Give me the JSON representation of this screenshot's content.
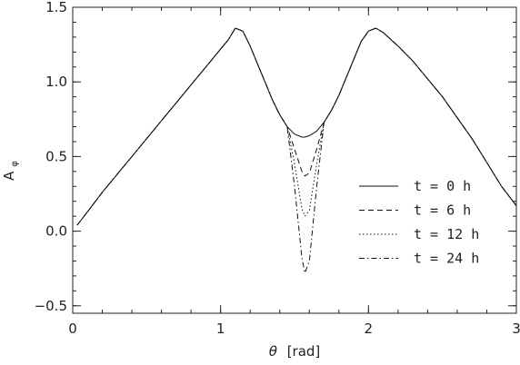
{
  "chart_data": {
    "type": "line",
    "xlabel": {
      "symbol": "θ",
      "unit": "[rad]"
    },
    "ylabel": {
      "main": "A",
      "sub": "φ"
    },
    "xlim": [
      0,
      3
    ],
    "ylim": [
      -0.55,
      1.5
    ],
    "xticks": [
      "0",
      "1",
      "2",
      "3"
    ],
    "yticks": [
      "−0.5",
      "0.0",
      "0.5",
      "1.0",
      "1.5"
    ],
    "ytick_values": [
      -0.5,
      0.0,
      0.5,
      1.0,
      1.5
    ],
    "grid": false,
    "legend_position": "right-center",
    "x": [
      0.03,
      0.1,
      0.2,
      0.3,
      0.4,
      0.5,
      0.6,
      0.7,
      0.8,
      0.9,
      1.0,
      1.05,
      1.1,
      1.15,
      1.2,
      1.25,
      1.3,
      1.35,
      1.4,
      1.45,
      1.5,
      1.55,
      1.57,
      1.6,
      1.65,
      1.7,
      1.75,
      1.8,
      1.85,
      1.9,
      1.95,
      2.0,
      2.05,
      2.1,
      2.2,
      2.3,
      2.4,
      2.5,
      2.6,
      2.7,
      2.8,
      2.9,
      3.0
    ],
    "series": [
      {
        "name": "t = 0 h",
        "dash": "",
        "values": [
          0.04,
          0.13,
          0.26,
          0.38,
          0.5,
          0.62,
          0.74,
          0.86,
          0.98,
          1.1,
          1.22,
          1.28,
          1.36,
          1.34,
          1.24,
          1.12,
          1.0,
          0.88,
          0.78,
          0.7,
          0.65,
          0.63,
          0.63,
          0.64,
          0.67,
          0.73,
          0.81,
          0.91,
          1.03,
          1.15,
          1.27,
          1.34,
          1.36,
          1.33,
          1.24,
          1.14,
          1.02,
          0.9,
          0.76,
          0.62,
          0.46,
          0.3,
          0.17
        ]
      },
      {
        "name": "t = 6 h",
        "dash": "6,4",
        "values": [
          0.04,
          0.13,
          0.26,
          0.38,
          0.5,
          0.62,
          0.74,
          0.86,
          0.98,
          1.1,
          1.22,
          1.28,
          1.36,
          1.34,
          1.24,
          1.12,
          1.0,
          0.88,
          0.78,
          0.7,
          0.55,
          0.4,
          0.37,
          0.39,
          0.55,
          0.73,
          0.81,
          0.91,
          1.03,
          1.15,
          1.27,
          1.34,
          1.36,
          1.33,
          1.24,
          1.14,
          1.02,
          0.9,
          0.76,
          0.62,
          0.46,
          0.3,
          0.17
        ]
      },
      {
        "name": "t = 12 h",
        "dash": "1.5,2.5",
        "values": [
          0.04,
          0.13,
          0.26,
          0.38,
          0.5,
          0.62,
          0.74,
          0.86,
          0.98,
          1.1,
          1.22,
          1.28,
          1.36,
          1.34,
          1.24,
          1.12,
          1.0,
          0.88,
          0.78,
          0.7,
          0.45,
          0.15,
          0.1,
          0.14,
          0.45,
          0.73,
          0.81,
          0.91,
          1.03,
          1.15,
          1.27,
          1.34,
          1.36,
          1.33,
          1.24,
          1.14,
          1.02,
          0.9,
          0.76,
          0.62,
          0.46,
          0.3,
          0.17
        ]
      },
      {
        "name": "t = 24 h",
        "dash": "6,3,1.5,3",
        "values": [
          0.04,
          0.13,
          0.26,
          0.38,
          0.5,
          0.62,
          0.74,
          0.86,
          0.98,
          1.1,
          1.22,
          1.28,
          1.36,
          1.34,
          1.24,
          1.12,
          1.0,
          0.88,
          0.78,
          0.7,
          0.3,
          -0.18,
          -0.28,
          -0.2,
          0.3,
          0.73,
          0.81,
          0.91,
          1.03,
          1.15,
          1.27,
          1.34,
          1.36,
          1.33,
          1.24,
          1.14,
          1.02,
          0.9,
          0.76,
          0.62,
          0.46,
          0.3,
          0.17
        ]
      }
    ]
  }
}
